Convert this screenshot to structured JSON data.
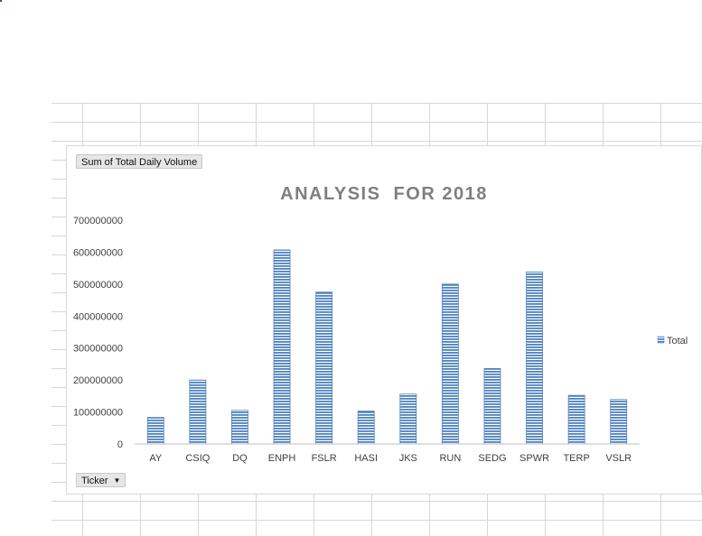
{
  "pivot": {
    "value_field": "Sum of Total Daily Volume",
    "axis_field": "Ticker"
  },
  "icons": {
    "dropdown": "chevron-down-icon"
  },
  "chart_data": {
    "type": "bar",
    "title": "ANALYSIS  FOR 2018",
    "categories": [
      "AY",
      "CSIQ",
      "DQ",
      "ENPH",
      "FSLR",
      "HASI",
      "JKS",
      "RUN",
      "SEDG",
      "SPWR",
      "TERP",
      "VSLR"
    ],
    "series": [
      {
        "name": "Total",
        "values": [
          83000000,
          200000000,
          105000000,
          607000000,
          475000000,
          103000000,
          156000000,
          500000000,
          236000000,
          538000000,
          152000000,
          139000000
        ],
        "color": "#4f81bd"
      }
    ],
    "ylim": [
      0,
      700000000
    ],
    "y_ticks": [
      0,
      100000000,
      200000000,
      300000000,
      400000000,
      500000000,
      600000000,
      700000000
    ],
    "y_tick_labels": [
      "0",
      "100000000",
      "200000000",
      "300000000",
      "400000000",
      "500000000",
      "600000000",
      "700000000"
    ],
    "grid": false,
    "legend": {
      "position": "right",
      "entries": [
        "Total"
      ]
    }
  }
}
